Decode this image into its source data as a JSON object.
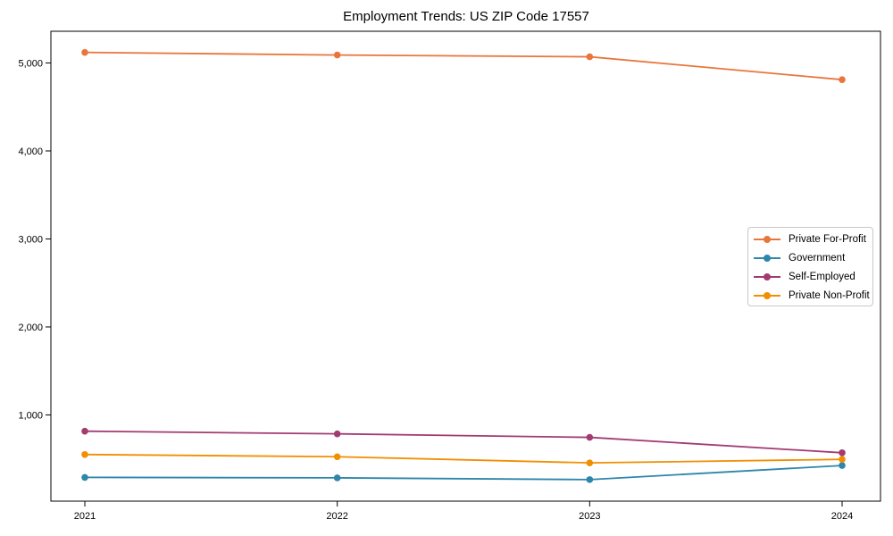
{
  "chart_data": {
    "type": "line",
    "title": "Employment Trends: US ZIP Code 17557",
    "xlabel": "",
    "ylabel": "",
    "categories": [
      "2021",
      "2022",
      "2023",
      "2024"
    ],
    "series": [
      {
        "name": "Private For-Profit",
        "color": "#E8763B",
        "values": [
          5120,
          5090,
          5070,
          4810
        ]
      },
      {
        "name": "Government",
        "color": "#2E86AB",
        "values": [
          290,
          285,
          265,
          425
        ]
      },
      {
        "name": "Self-Employed",
        "color": "#A23B72",
        "values": [
          815,
          785,
          745,
          570
        ]
      },
      {
        "name": "Private Non-Profit",
        "color": "#F18F01",
        "values": [
          550,
          525,
          455,
          495
        ]
      }
    ],
    "y_ticks": {
      "values": [
        1000,
        2000,
        3000,
        4000,
        5000
      ],
      "labels": [
        "1,000",
        "2,000",
        "3,000",
        "4,000",
        "5,000"
      ]
    },
    "ylim": [
      20,
      5360
    ],
    "grid": false,
    "legend_position": "center-right",
    "axis_color": "#000000",
    "text_color": "#000000",
    "background_color": "#ffffff"
  }
}
